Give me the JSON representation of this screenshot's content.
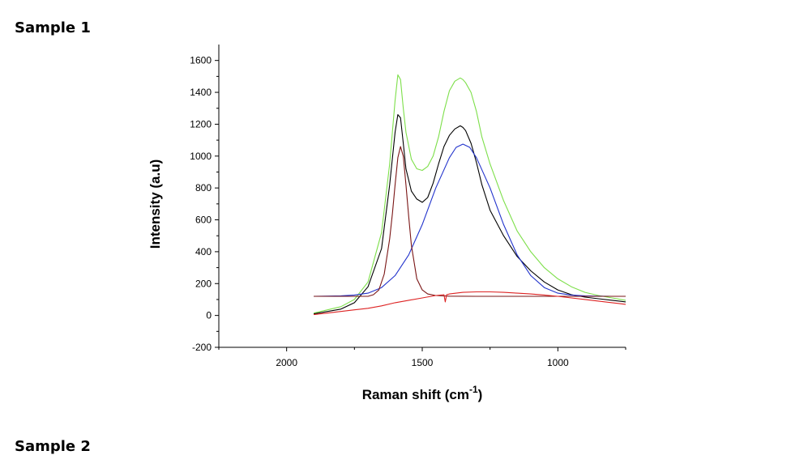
{
  "page": {
    "heading": "Sample 1",
    "next_heading": "Sample 2"
  },
  "chart_data": {
    "type": "line",
    "title": "",
    "xlabel": "Raman shift (cm",
    "xlabel_sup": "-1",
    "xlabel_end": ")",
    "ylabel": "Intensity (a.u)",
    "xlim": [
      2250,
      750
    ],
    "ylim": [
      -200,
      1700
    ],
    "x_reversed": true,
    "x_ticks": [
      2000,
      1500,
      1000
    ],
    "y_ticks": [
      -200,
      0,
      200,
      400,
      600,
      800,
      1000,
      1200,
      1400,
      1600
    ],
    "grid": false,
    "series": [
      {
        "color": "#7ddf4a",
        "x": [
          1900,
          1800,
          1750,
          1700,
          1650,
          1620,
          1600,
          1590,
          1580,
          1570,
          1560,
          1540,
          1520,
          1500,
          1480,
          1460,
          1440,
          1420,
          1400,
          1380,
          1360,
          1350,
          1340,
          1320,
          1300,
          1280,
          1250,
          1200,
          1150,
          1100,
          1050,
          1000,
          950,
          900,
          850,
          800,
          750
        ],
        "y": [
          15,
          55,
          100,
          210,
          520,
          950,
          1350,
          1510,
          1480,
          1300,
          1150,
          980,
          920,
          910,
          935,
          1000,
          1120,
          1280,
          1410,
          1470,
          1490,
          1480,
          1460,
          1400,
          1280,
          1120,
          950,
          720,
          530,
          400,
          300,
          230,
          180,
          145,
          125,
          110,
          95
        ]
      },
      {
        "color": "#000000",
        "x": [
          1900,
          1800,
          1750,
          1700,
          1650,
          1620,
          1600,
          1590,
          1580,
          1570,
          1560,
          1540,
          1520,
          1500,
          1480,
          1460,
          1440,
          1420,
          1400,
          1380,
          1360,
          1350,
          1340,
          1320,
          1300,
          1280,
          1250,
          1200,
          1150,
          1100,
          1050,
          1000,
          950,
          900,
          850,
          800,
          750
        ],
        "y": [
          10,
          40,
          80,
          180,
          420,
          820,
          1150,
          1260,
          1240,
          1080,
          920,
          780,
          730,
          710,
          740,
          830,
          950,
          1060,
          1130,
          1170,
          1190,
          1180,
          1160,
          1080,
          960,
          820,
          660,
          500,
          370,
          280,
          210,
          160,
          130,
          115,
          105,
          95,
          85
        ]
      },
      {
        "color": "#2233cc",
        "x": [
          1900,
          1800,
          1750,
          1700,
          1650,
          1600,
          1550,
          1500,
          1450,
          1400,
          1375,
          1350,
          1325,
          1300,
          1250,
          1200,
          1150,
          1100,
          1050,
          1000,
          950,
          900,
          850,
          800,
          750
        ],
        "y": [
          120,
          123,
          128,
          140,
          175,
          250,
          380,
          570,
          800,
          990,
          1055,
          1075,
          1055,
          990,
          800,
          570,
          380,
          250,
          175,
          140,
          128,
          123,
          121,
          120,
          120
        ]
      },
      {
        "color": "#7a1515",
        "x": [
          1900,
          1700,
          1680,
          1660,
          1640,
          1620,
          1610,
          1600,
          1590,
          1580,
          1570,
          1560,
          1550,
          1540,
          1520,
          1500,
          1480,
          1450,
          1400,
          1300,
          1200,
          1100,
          1000,
          900,
          800,
          750
        ],
        "y": [
          120,
          120,
          130,
          160,
          260,
          480,
          640,
          820,
          990,
          1060,
          1000,
          820,
          620,
          440,
          230,
          160,
          135,
          125,
          121,
          120,
          120,
          120,
          120,
          120,
          120,
          120
        ]
      },
      {
        "color": "#dd2222",
        "x": [
          1900,
          1850,
          1800,
          1750,
          1700,
          1650,
          1600,
          1550,
          1500,
          1450,
          1420,
          1415,
          1410,
          1400,
          1350,
          1300,
          1250,
          1200,
          1150,
          1100,
          1050,
          1000,
          950,
          900,
          850,
          800,
          750
        ],
        "y": [
          5,
          15,
          25,
          35,
          45,
          60,
          80,
          95,
          110,
          125,
          130,
          85,
          130,
          135,
          145,
          148,
          148,
          145,
          140,
          135,
          128,
          120,
          110,
          100,
          90,
          80,
          70
        ]
      }
    ]
  }
}
